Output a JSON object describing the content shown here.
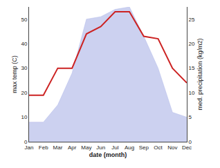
{
  "chart_data": {
    "type": "line",
    "categories": [
      "Jan",
      "Feb",
      "Mar",
      "Apr",
      "May",
      "Jun",
      "Jul",
      "Aug",
      "Sep",
      "Oct",
      "Nov",
      "Dec"
    ],
    "xlabel": "date (month)",
    "ylabel": "max temp (C)",
    "y2label": "med. precipitation (kg/m2)",
    "series": [
      {
        "type": "area",
        "color": "#b0b8e8",
        "values": [
          8,
          8,
          15,
          28,
          50,
          51,
          54,
          55,
          43,
          30,
          12,
          10
        ]
      },
      {
        "type": "line",
        "color": "#cc2222",
        "values": [
          19,
          19,
          30,
          30,
          44,
          47,
          53,
          53,
          43,
          42,
          30,
          24
        ]
      }
    ],
    "ylim": [
      0,
      55
    ],
    "yticks": [
      0,
      10,
      20,
      30,
      40,
      50
    ],
    "y2lim": [
      0,
      27.5
    ],
    "y2ticks": [
      0,
      5,
      10,
      15,
      20,
      25
    ],
    "grid": false
  }
}
